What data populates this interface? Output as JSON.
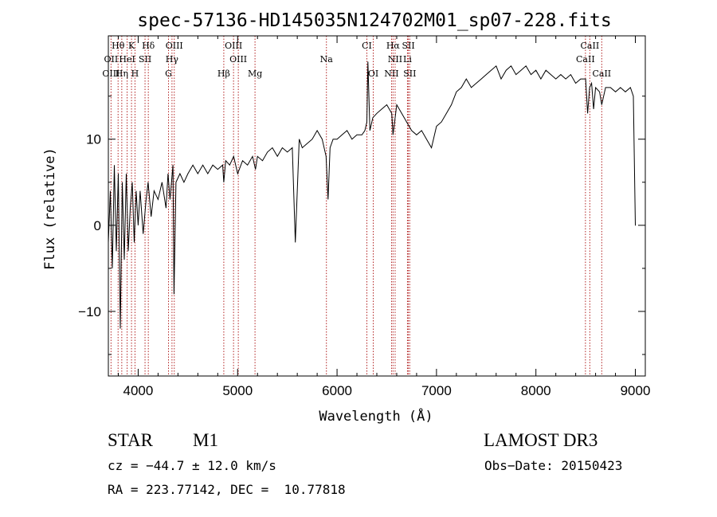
{
  "chart_data": {
    "type": "line",
    "title": "spec-57136-HD145035N124702M01_sp07-228.fits",
    "xlabel": "Wavelength (Å)",
    "ylabel": "Flux (relative)",
    "xlim": [
      3700,
      9100
    ],
    "ylim": [
      -17.5,
      22
    ],
    "xticks": [
      4000,
      5000,
      6000,
      7000,
      8000,
      9000
    ],
    "yticks": [
      -10,
      0,
      10
    ],
    "series": [
      {
        "name": "spectrum",
        "x": [
          3700,
          3720,
          3740,
          3760,
          3780,
          3800,
          3820,
          3840,
          3860,
          3880,
          3900,
          3920,
          3940,
          3960,
          3980,
          4000,
          4020,
          4050,
          4080,
          4100,
          4130,
          4160,
          4200,
          4240,
          4280,
          4300,
          4320,
          4350,
          4360,
          4380,
          4420,
          4460,
          4500,
          4550,
          4600,
          4650,
          4700,
          4750,
          4800,
          4850,
          4861,
          4880,
          4920,
          4960,
          5000,
          5050,
          5100,
          5150,
          5180,
          5200,
          5250,
          5300,
          5350,
          5400,
          5450,
          5500,
          5550,
          5580,
          5620,
          5650,
          5700,
          5750,
          5800,
          5850,
          5890,
          5910,
          5930,
          5960,
          6000,
          6050,
          6100,
          6150,
          6200,
          6250,
          6280,
          6300,
          6310,
          6330,
          6360,
          6400,
          6450,
          6500,
          6550,
          6563,
          6600,
          6650,
          6700,
          6750,
          6800,
          6850,
          6900,
          6950,
          7000,
          7050,
          7100,
          7150,
          7200,
          7250,
          7300,
          7350,
          7400,
          7450,
          7500,
          7550,
          7600,
          7650,
          7700,
          7750,
          7800,
          7850,
          7900,
          7950,
          8000,
          8050,
          8100,
          8150,
          8200,
          8250,
          8300,
          8350,
          8400,
          8450,
          8500,
          8520,
          8540,
          8560,
          8580,
          8600,
          8640,
          8662,
          8700,
          8750,
          8800,
          8850,
          8900,
          8950,
          8980,
          9000,
          9003
        ],
        "y": [
          -2,
          4,
          -5,
          7,
          -3,
          6,
          -12,
          5,
          -4,
          6,
          -3,
          2,
          5,
          -2,
          4,
          0,
          4,
          -1,
          3,
          5,
          1,
          4,
          3,
          5,
          2,
          6,
          3,
          7,
          -8,
          5,
          6,
          5,
          6,
          7,
          6,
          7,
          6,
          7,
          6.5,
          7,
          5,
          7.5,
          7,
          8,
          6,
          7.5,
          7,
          8,
          6.5,
          8,
          7.5,
          8.5,
          9,
          8,
          9,
          8.5,
          9,
          -2,
          10,
          9,
          9.5,
          10,
          11,
          10,
          8,
          3,
          9,
          10,
          10,
          10.5,
          11,
          10,
          10.5,
          10.5,
          11,
          12,
          19,
          11,
          12.5,
          13,
          13.5,
          14,
          13,
          10.5,
          14,
          13,
          12,
          11,
          10.5,
          11,
          10,
          9,
          11.5,
          12,
          13,
          14,
          15.5,
          16,
          17,
          16,
          16.5,
          17,
          17.5,
          18,
          18.5,
          17,
          18,
          18.5,
          17.5,
          18,
          18.5,
          17.5,
          18,
          17,
          18,
          17.5,
          17,
          17.5,
          17,
          17.5,
          16.5,
          17,
          17,
          13,
          16,
          16.5,
          13.5,
          16,
          15.5,
          14,
          16,
          16,
          15.5,
          16,
          15.5,
          16,
          15,
          0,
          0
        ]
      }
    ],
    "line_annotations": [
      {
        "label": "Hθ",
        "x": 3798,
        "row": 1
      },
      {
        "label": "K",
        "x": 3933,
        "row": 1
      },
      {
        "label": "Hδ",
        "x": 4102,
        "row": 1
      },
      {
        "label": "OIII",
        "x": 4363,
        "row": 1
      },
      {
        "label": "OIII",
        "x": 4959,
        "row": 1
      },
      {
        "label": "CI",
        "x": 6300,
        "row": 1
      },
      {
        "label": "Hα",
        "x": 6563,
        "row": 1
      },
      {
        "label": "SII",
        "x": 6717,
        "row": 1
      },
      {
        "label": "CaII",
        "x": 8542,
        "row": 1
      },
      {
        "label": "OII",
        "x": 3727,
        "row": 2
      },
      {
        "label": "HeI",
        "x": 3889,
        "row": 2
      },
      {
        "label": "SII",
        "x": 4069,
        "row": 2
      },
      {
        "label": "Hγ",
        "x": 4340,
        "row": 2
      },
      {
        "label": "OIII",
        "x": 5007,
        "row": 2
      },
      {
        "label": "Na",
        "x": 5893,
        "row": 2
      },
      {
        "label": "NII",
        "x": 6584,
        "row": 2
      },
      {
        "label": "Li",
        "x": 6708,
        "row": 2
      },
      {
        "label": "CaII",
        "x": 8498,
        "row": 2
      },
      {
        "label": "OIII",
        "x": 3727,
        "row": 3
      },
      {
        "label": "Hη",
        "x": 3835,
        "row": 3
      },
      {
        "label": "H",
        "x": 3968,
        "row": 3
      },
      {
        "label": "G",
        "x": 4305,
        "row": 3
      },
      {
        "label": "Hβ",
        "x": 4861,
        "row": 3
      },
      {
        "label": "Mg",
        "x": 5175,
        "row": 3
      },
      {
        "label": "OI",
        "x": 6364,
        "row": 3
      },
      {
        "label": "NII",
        "x": 6548,
        "row": 3
      },
      {
        "label": "SII",
        "x": 6731,
        "row": 3
      },
      {
        "label": "CaII",
        "x": 8662,
        "row": 3
      }
    ],
    "marker_lines_x": [
      3727,
      3798,
      3835,
      3889,
      3933,
      3968,
      4069,
      4102,
      4305,
      4340,
      4363,
      4861,
      4959,
      5007,
      5175,
      5893,
      6300,
      6364,
      6548,
      6563,
      6584,
      6708,
      6717,
      6731,
      8498,
      8542,
      8662
    ]
  },
  "info": {
    "class_label": "STAR",
    "subclass": "M1",
    "survey": "LAMOST DR3",
    "cz": "cz = −44.7 ± 12.0 km/s",
    "obs_date": "Obs−Date: 20150423",
    "coords": "RA = 223.77142, DEC =  10.77818"
  }
}
